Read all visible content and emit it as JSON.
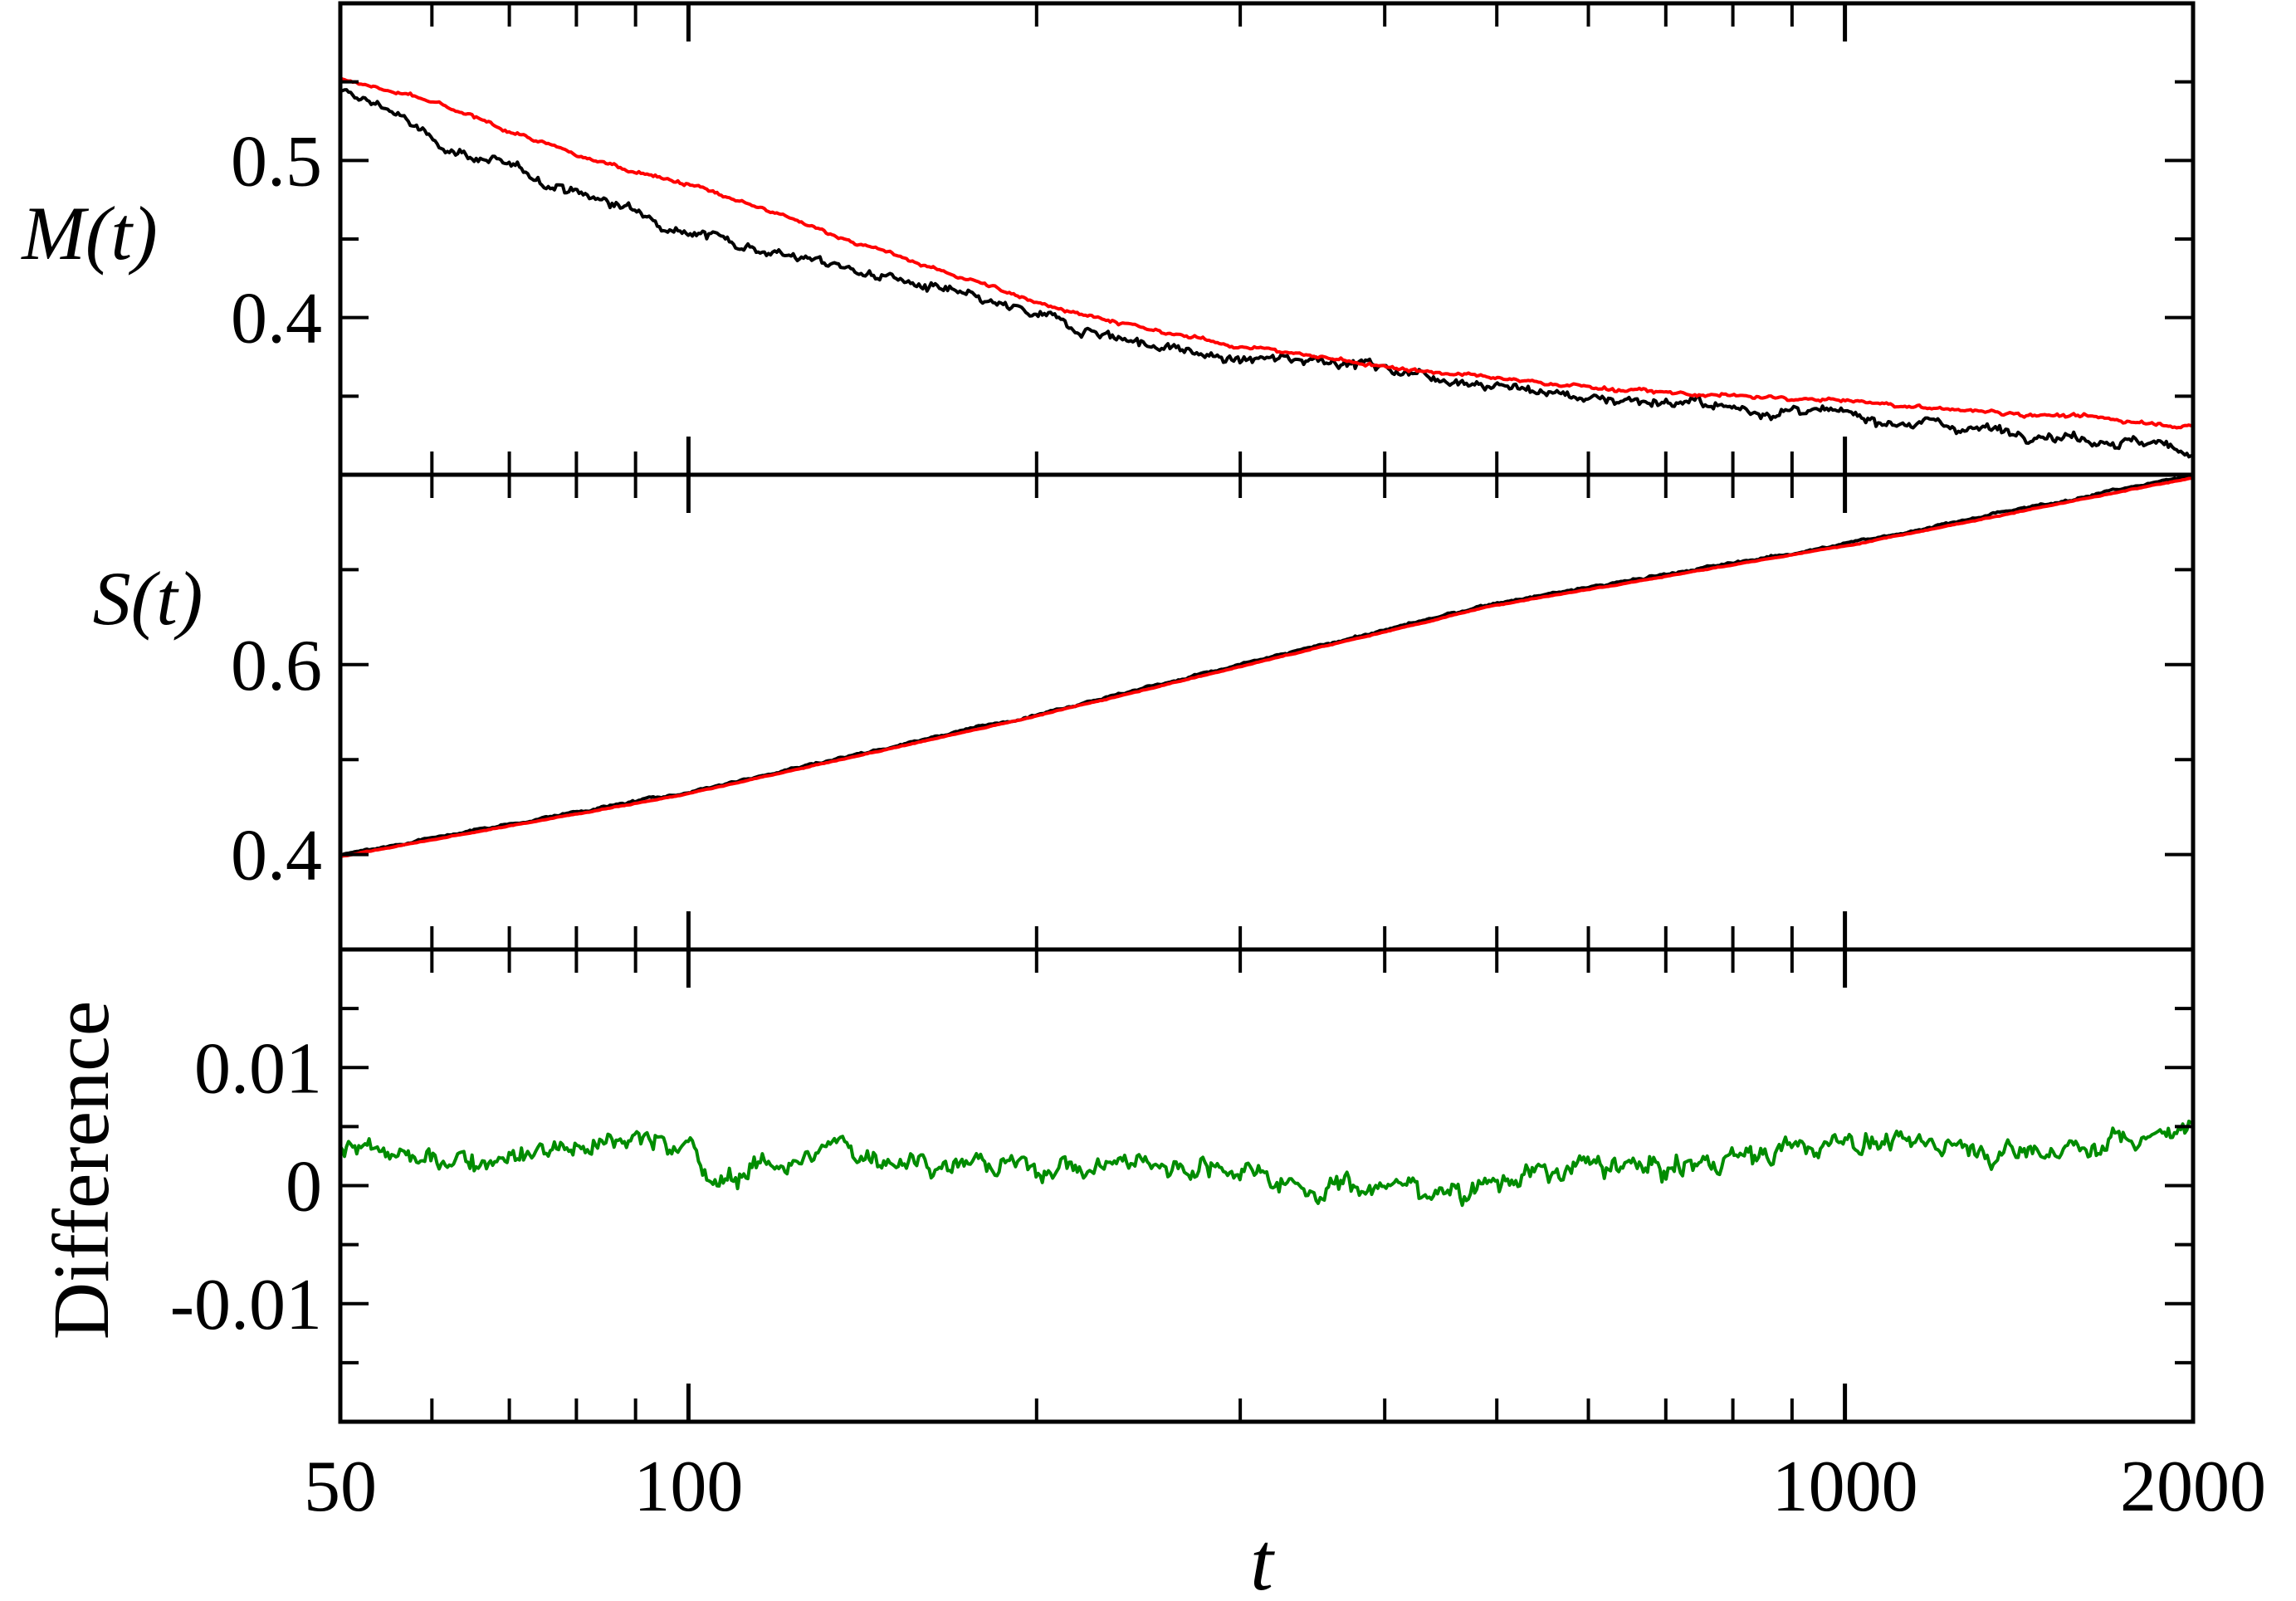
{
  "chart_data": [
    {
      "type": "line",
      "panel": "top",
      "ylabel": "M(t)",
      "xscale": "log",
      "xlim": [
        50,
        2000
      ],
      "ylim": [
        0.3,
        0.6
      ],
      "yticks": [
        {
          "value": 0.4,
          "label": "0.4"
        },
        {
          "value": 0.5,
          "label": "0.5"
        }
      ],
      "series": [
        {
          "color": "#000000",
          "noise": 0.004,
          "points": [
            [
              50,
              0.543
            ],
            [
              55,
              0.534
            ],
            [
              60,
              0.512
            ],
            [
              70,
              0.495
            ],
            [
              80,
              0.48
            ],
            [
              100,
              0.456
            ],
            [
              120,
              0.441
            ],
            [
              150,
              0.425
            ],
            [
              200,
              0.401
            ],
            [
              250,
              0.383
            ],
            [
              300,
              0.372
            ],
            [
              350,
              0.375
            ],
            [
              400,
              0.368
            ],
            [
              500,
              0.357
            ],
            [
              600,
              0.349
            ],
            [
              700,
              0.347
            ],
            [
              800,
              0.342
            ],
            [
              1000,
              0.338
            ],
            [
              1200,
              0.332
            ],
            [
              1500,
              0.326
            ],
            [
              1800,
              0.32
            ],
            [
              2000,
              0.315
            ]
          ]
        },
        {
          "color": "#ff0000",
          "noise": 0.0015,
          "points": [
            [
              50,
              0.552
            ],
            [
              60,
              0.537
            ],
            [
              80,
              0.503
            ],
            [
              100,
              0.485
            ],
            [
              120,
              0.465
            ],
            [
              150,
              0.44
            ],
            [
              200,
              0.41
            ],
            [
              250,
              0.392
            ],
            [
              300,
              0.382
            ],
            [
              400,
              0.369
            ],
            [
              500,
              0.361
            ],
            [
              600,
              0.356
            ],
            [
              700,
              0.352
            ],
            [
              800,
              0.35
            ],
            [
              1000,
              0.347
            ],
            [
              1200,
              0.342
            ],
            [
              1500,
              0.338
            ],
            [
              1800,
              0.334
            ],
            [
              2000,
              0.33
            ]
          ]
        }
      ]
    },
    {
      "type": "line",
      "panel": "middle",
      "ylabel": "S(t)",
      "xscale": "log",
      "xlim": [
        50,
        2000
      ],
      "ylim": [
        0.3,
        0.8
      ],
      "yticks": [
        {
          "value": 0.4,
          "label": "0.4"
        },
        {
          "value": 0.6,
          "label": "0.6"
        }
      ],
      "series": [
        {
          "color": "#000000",
          "noise": 0.0015,
          "points": [
            [
              50,
              0.4
            ],
            [
              100,
              0.466
            ],
            [
              200,
              0.548
            ],
            [
              300,
              0.6
            ],
            [
              500,
              0.665
            ],
            [
              1000,
              0.727
            ],
            [
              2000,
              0.8
            ]
          ]
        },
        {
          "color": "#ff0000",
          "noise": 0.0005,
          "points": [
            [
              50,
              0.398
            ],
            [
              100,
              0.464
            ],
            [
              200,
              0.546
            ],
            [
              300,
              0.598
            ],
            [
              500,
              0.663
            ],
            [
              1000,
              0.725
            ],
            [
              2000,
              0.797
            ]
          ]
        }
      ]
    },
    {
      "type": "line",
      "panel": "bottom",
      "ylabel": "Difference",
      "xlabel": "t",
      "xscale": "log",
      "xlim": [
        50,
        2000
      ],
      "ylim": [
        -0.02,
        0.02
      ],
      "xticks": [
        {
          "value": 50,
          "label": "50"
        },
        {
          "value": 100,
          "label": "100"
        },
        {
          "value": 1000,
          "label": "1000"
        },
        {
          "value": 2000,
          "label": "2000"
        }
      ],
      "yticks": [
        {
          "value": -0.01,
          "label": "-0.01"
        },
        {
          "value": 0,
          "label": "0"
        },
        {
          "value": 0.01,
          "label": "0.01"
        }
      ],
      "series": [
        {
          "color": "#008c00",
          "noise": 0.0012,
          "points": [
            [
              50,
              0.0035
            ],
            [
              55,
              0.003
            ],
            [
              60,
              0.0015
            ],
            [
              70,
              0.003
            ],
            [
              80,
              0.0035
            ],
            [
              90,
              0.004
            ],
            [
              100,
              0.0035
            ],
            [
              105,
              0.0
            ],
            [
              110,
              0.001
            ],
            [
              130,
              0.003
            ],
            [
              150,
              0.0025
            ],
            [
              200,
              0.0015
            ],
            [
              250,
              0.002
            ],
            [
              300,
              0.0015
            ],
            [
              350,
              0.0
            ],
            [
              400,
              0.0
            ],
            [
              450,
              -0.0005
            ],
            [
              500,
              0.0005
            ],
            [
              600,
              0.0015
            ],
            [
              700,
              0.0015
            ],
            [
              800,
              0.0025
            ],
            [
              900,
              0.003
            ],
            [
              1000,
              0.004
            ],
            [
              1200,
              0.0035
            ],
            [
              1500,
              0.003
            ],
            [
              1800,
              0.004
            ],
            [
              2000,
              0.005
            ]
          ]
        }
      ]
    }
  ],
  "x_minor_ticks": [
    60,
    70,
    80,
    90,
    200,
    300,
    400,
    500,
    600,
    700,
    800,
    900
  ]
}
